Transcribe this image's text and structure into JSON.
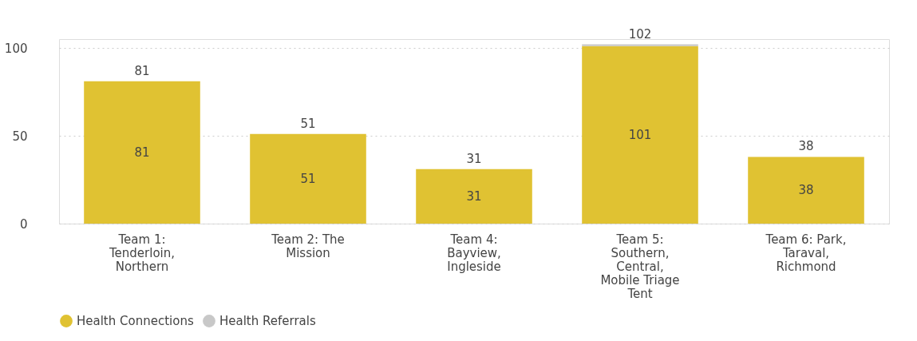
{
  "chart_data": {
    "type": "bar",
    "stacked": true,
    "categories": [
      "Team 1: Tenderloin, Northern",
      "Team 2: The Mission",
      "Team 4: Bayview, Ingleside",
      "Team 5: Southern, Central, Mobile Triage Tent",
      "Team 6: Park, Taraval, Richmond"
    ],
    "series": [
      {
        "name": "Health Connections",
        "color": "#e0c232",
        "values": [
          81,
          51,
          31,
          101,
          38
        ],
        "value_labels": [
          "81",
          "51",
          "31",
          "101",
          "38"
        ]
      },
      {
        "name": "Health Referrals",
        "color": "#c8c8c8",
        "values": [
          0,
          0,
          0,
          1,
          0
        ],
        "value_labels": [
          null,
          null,
          null,
          null,
          null
        ]
      }
    ],
    "totals": [
      "81",
      "51",
      "31",
      "102",
      "38"
    ],
    "ylim": [
      0,
      105
    ],
    "yticks": [
      0,
      50,
      100
    ],
    "grid": "y",
    "legend": "bottom"
  }
}
